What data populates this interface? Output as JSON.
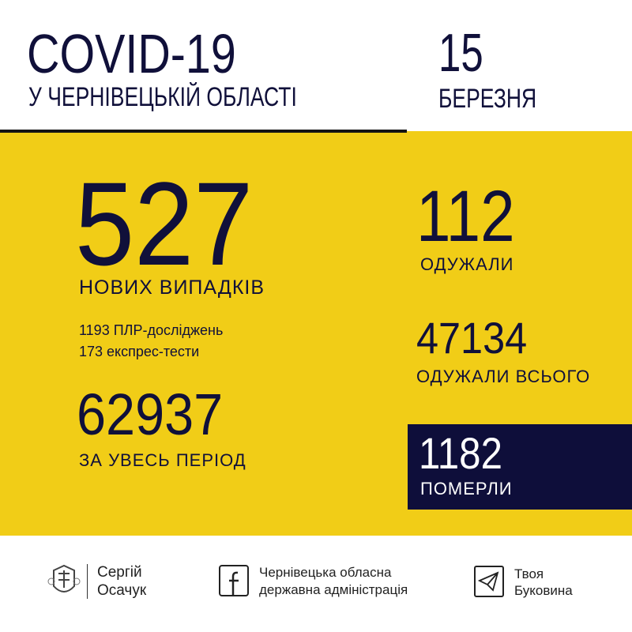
{
  "header": {
    "title": "COVID-19",
    "subtitle": "У ЧЕРНІВЕЦЬКІЙ ОБЛАСТІ",
    "day": "15",
    "month": "БЕРЕЗНЯ"
  },
  "stats": {
    "new_cases": {
      "value": "527",
      "label": "НОВИХ ВИПАДКІВ"
    },
    "tests": [
      "1193 ПЛР-досліджень",
      "173 експрес-тести"
    ],
    "total": {
      "value": "62937",
      "label": "ЗА УВЕСЬ ПЕРІОД"
    },
    "recovered": {
      "value": "112",
      "label": "ОДУЖАЛИ"
    },
    "recovered_total": {
      "value": "47134",
      "label": "ОДУЖАЛИ ВСЬОГО"
    },
    "deaths": {
      "value": "1182",
      "label": "ПОМЕРЛИ"
    }
  },
  "footer": {
    "person": [
      "Сергій",
      "Осачук"
    ],
    "facebook": [
      "Чернівецька обласна",
      "державна адміністрація"
    ],
    "telegram": [
      "Твоя",
      "Буковина"
    ]
  },
  "colors": {
    "navy": "#10103a",
    "yellow": "#f1cd17",
    "white": "#ffffff"
  }
}
